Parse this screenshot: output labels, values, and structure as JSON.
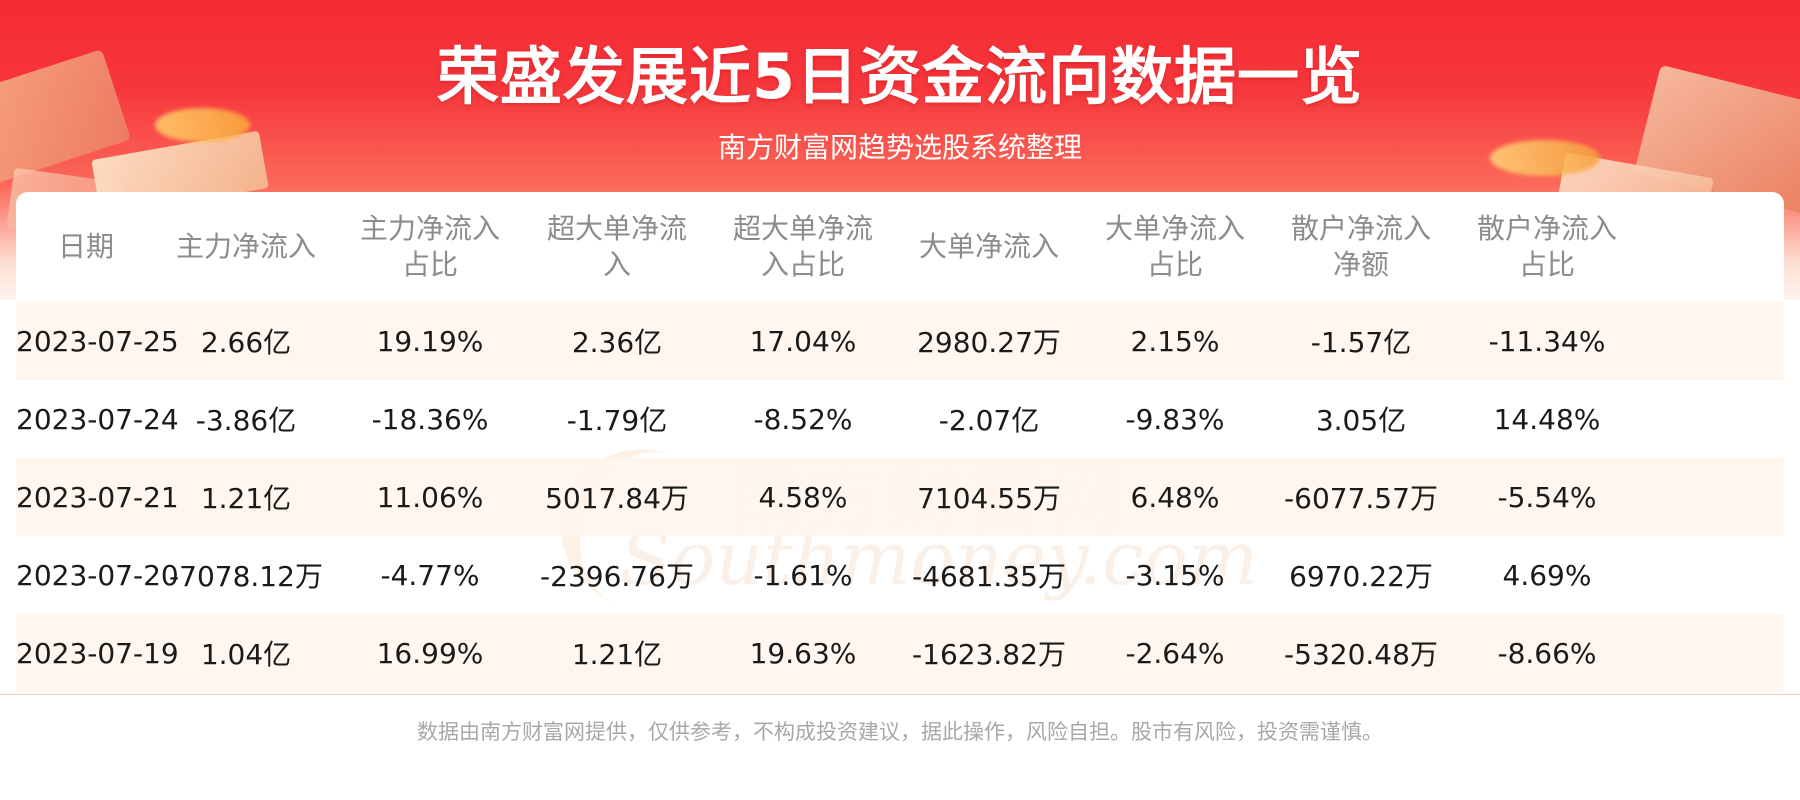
{
  "title": "荣盛发展近5日资金流向数据一览",
  "subtitle": "南方财富网趋势选股系统整理",
  "table": {
    "headers": [
      "日期",
      "主力净流入",
      "主力净流入占比",
      "超大单净流入",
      "超大单净流入占比",
      "大单净流入",
      "大单净流入占比",
      "散户净流入净额",
      "散户净流入占比"
    ],
    "rows": [
      [
        "2023-07-25",
        "2.66亿",
        "19.19%",
        "2.36亿",
        "17.04%",
        "2980.27万",
        "2.15%",
        "-1.57亿",
        "-11.34%"
      ],
      [
        "2023-07-24",
        "-3.86亿",
        "-18.36%",
        "-1.79亿",
        "-8.52%",
        "-2.07亿",
        "-9.83%",
        "3.05亿",
        "14.48%"
      ],
      [
        "2023-07-21",
        "1.21亿",
        "11.06%",
        "5017.84万",
        "4.58%",
        "7104.55万",
        "6.48%",
        "-6077.57万",
        "-5.54%"
      ],
      [
        "2023-07-20",
        "-7078.12万",
        "-4.77%",
        "-2396.76万",
        "-1.61%",
        "-4681.35万",
        "-3.15%",
        "6970.22万",
        "4.69%"
      ],
      [
        "2023-07-19",
        "1.04亿",
        "16.99%",
        "1.21亿",
        "19.63%",
        "-1623.82万",
        "-2.64%",
        "-5320.48万",
        "-8.66%"
      ]
    ]
  },
  "watermark": {
    "cn": "南方财富网",
    "en": "Southmoney.com"
  },
  "footer": "数据由南方财富网提供，仅供参考，不构成投资建议，据此操作，风险自担。股市有风险，投资需谨慎。",
  "colors": {
    "banner_red": "#f52a34",
    "header_text": "#8c8c8c",
    "stripe": "#fff5ee",
    "footer_text": "#a8a8a8"
  }
}
